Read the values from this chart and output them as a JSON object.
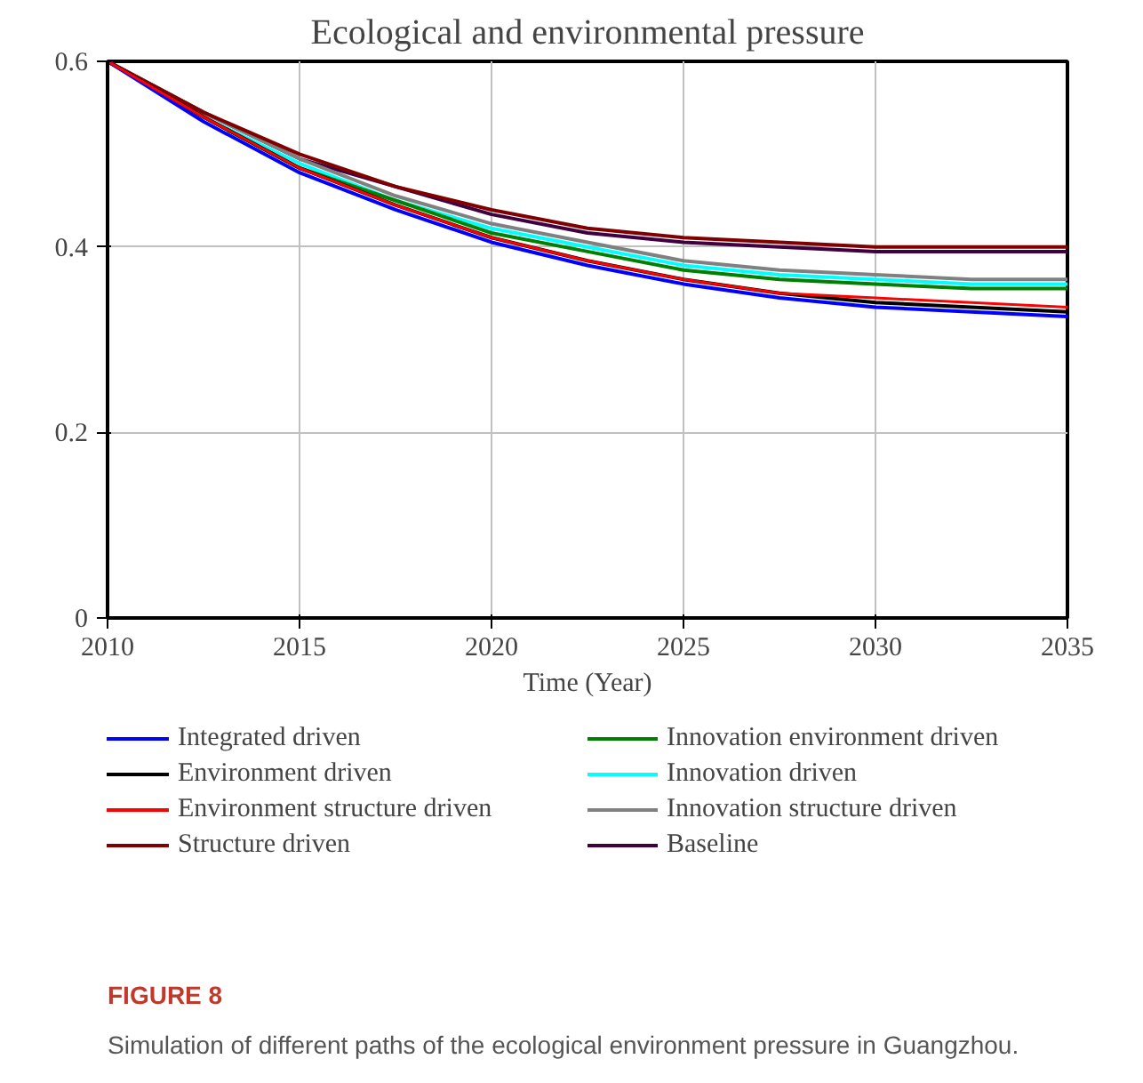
{
  "chart_data": {
    "type": "line",
    "title": "Ecological and environmental pressure",
    "xlabel": "Time (Year)",
    "x": [
      2010,
      2012.5,
      2015,
      2017.5,
      2020,
      2022.5,
      2025,
      2027.5,
      2030,
      2032.5,
      2035
    ],
    "xlim": [
      2010,
      2035
    ],
    "xticks": [
      2010,
      2015,
      2020,
      2025,
      2030,
      2035
    ],
    "ylim": [
      0,
      0.6
    ],
    "yticks": [
      0,
      0.2,
      0.4,
      0.6
    ],
    "grid": true,
    "legend": "bottom",
    "line_style": "solid",
    "series": [
      {
        "name": "Integrated driven",
        "color": "#0000ff",
        "values": [
          0.6,
          0.535,
          0.48,
          0.44,
          0.405,
          0.38,
          0.36,
          0.345,
          0.335,
          0.33,
          0.325
        ]
      },
      {
        "name": "Environment driven",
        "color": "#000000",
        "values": [
          0.6,
          0.54,
          0.485,
          0.445,
          0.41,
          0.385,
          0.365,
          0.35,
          0.34,
          0.335,
          0.33
        ]
      },
      {
        "name": "Environment structure driven",
        "color": "#ff0000",
        "values": [
          0.6,
          0.54,
          0.485,
          0.445,
          0.41,
          0.385,
          0.365,
          0.35,
          0.345,
          0.34,
          0.335
        ]
      },
      {
        "name": "Structure driven",
        "color": "#800000",
        "values": [
          0.6,
          0.545,
          0.5,
          0.465,
          0.44,
          0.42,
          0.41,
          0.405,
          0.4,
          0.4,
          0.4
        ]
      },
      {
        "name": "Innovation environment driven",
        "color": "#008000",
        "values": [
          0.6,
          0.54,
          0.485,
          0.45,
          0.415,
          0.395,
          0.375,
          0.365,
          0.36,
          0.355,
          0.355
        ]
      },
      {
        "name": "Innovation driven",
        "color": "#00ffff",
        "values": [
          0.6,
          0.54,
          0.49,
          0.45,
          0.42,
          0.4,
          0.38,
          0.37,
          0.365,
          0.36,
          0.36
        ]
      },
      {
        "name": "Innovation structure driven",
        "color": "#808080",
        "values": [
          0.6,
          0.545,
          0.495,
          0.455,
          0.425,
          0.405,
          0.385,
          0.375,
          0.37,
          0.365,
          0.365
        ]
      },
      {
        "name": "Baseline",
        "color": "#400040",
        "values": [
          0.6,
          0.545,
          0.495,
          0.465,
          0.435,
          0.415,
          0.405,
          0.4,
          0.395,
          0.395,
          0.395
        ]
      }
    ],
    "annotations": [
      "FIGURE 8",
      "Simulation of different paths of the ecological environment pressure in Guangzhou."
    ]
  }
}
